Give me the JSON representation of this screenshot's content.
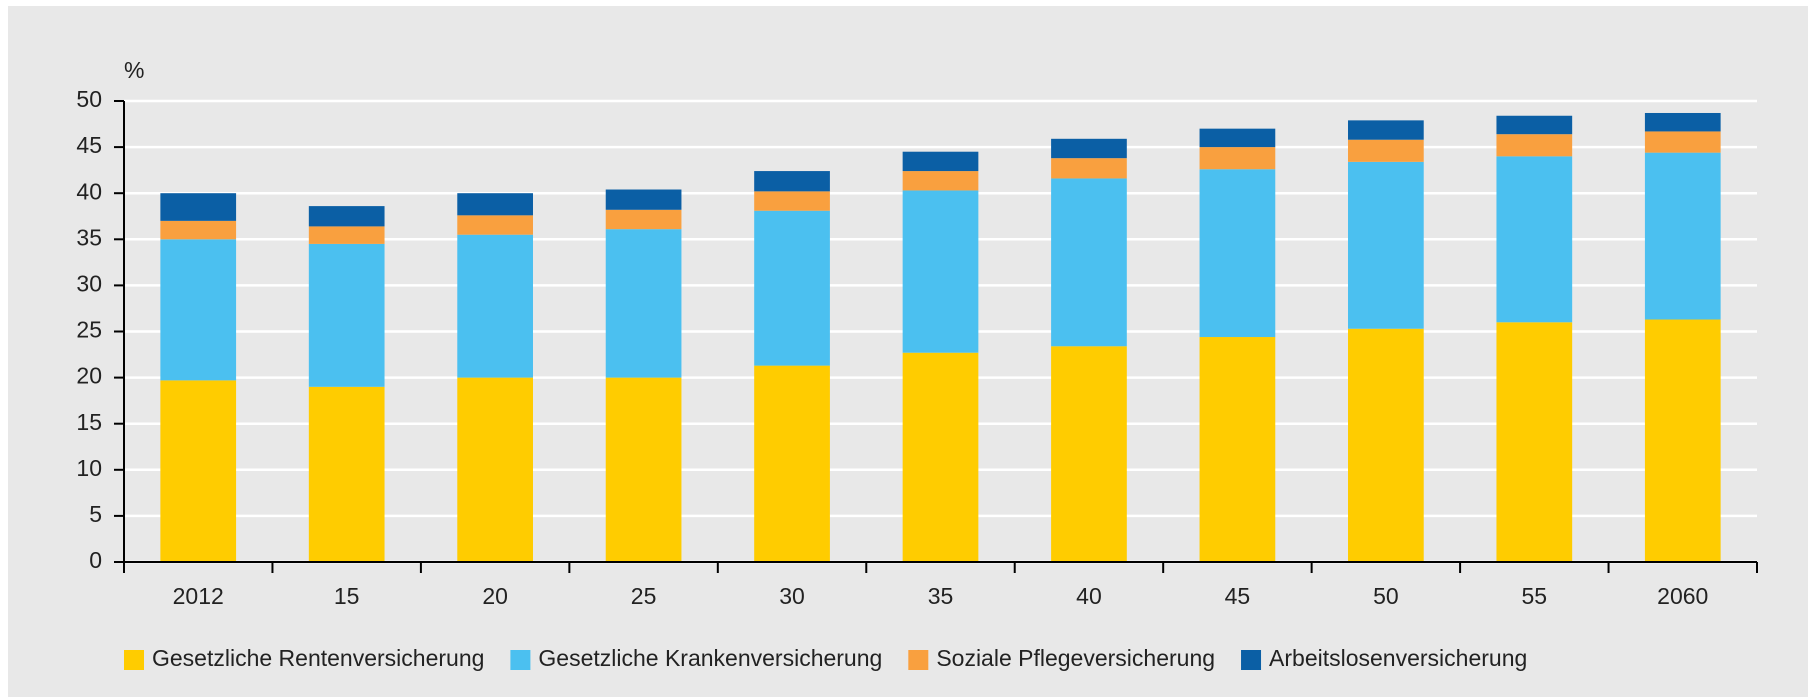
{
  "chart_data": {
    "type": "stacked_bar",
    "y_label": "%",
    "categories": [
      "2012",
      "15",
      "20",
      "25",
      "30",
      "35",
      "40",
      "45",
      "50",
      "55",
      "2060"
    ],
    "series": [
      {
        "name": "Gesetzliche Rentenversicherung",
        "color": "#ffcc00",
        "values": [
          19.7,
          19.0,
          20.0,
          20.0,
          21.3,
          22.7,
          23.4,
          24.4,
          25.3,
          26.0,
          26.3
        ]
      },
      {
        "name": "Gesetzliche Krankenversicherung",
        "color": "#4bc0f0",
        "values": [
          15.3,
          15.5,
          15.5,
          16.1,
          16.8,
          17.6,
          18.2,
          18.2,
          18.1,
          18.0,
          18.1
        ]
      },
      {
        "name": "Soziale Pflegeversicherung",
        "color": "#f9a03f",
        "values": [
          2.0,
          1.9,
          2.1,
          2.1,
          2.1,
          2.1,
          2.2,
          2.4,
          2.4,
          2.4,
          2.3
        ]
      },
      {
        "name": "Arbeitslosenversicherung",
        "color": "#0b5fa5",
        "values": [
          3.0,
          2.2,
          2.4,
          2.2,
          2.2,
          2.1,
          2.1,
          2.0,
          2.1,
          2.0,
          2.0
        ]
      }
    ],
    "ylim": [
      0,
      50
    ],
    "yticks": [
      0,
      5,
      10,
      15,
      20,
      25,
      30,
      35,
      40,
      45,
      50
    ],
    "grid": true
  }
}
